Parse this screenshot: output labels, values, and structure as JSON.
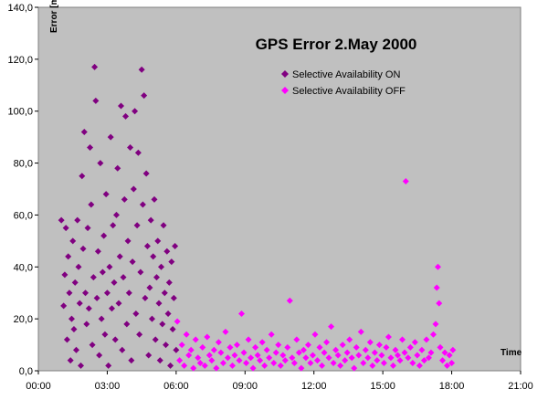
{
  "chart_data": {
    "type": "scatter",
    "title": "GPS Error 2.May 2000",
    "xlabel": "Time",
    "ylabel": "Error [m]",
    "xlim": [
      0,
      21
    ],
    "ylim": [
      0,
      140
    ],
    "x_ticks": [
      "00:00",
      "03:00",
      "06:00",
      "09:00",
      "12:00",
      "15:00",
      "18:00",
      "21:00"
    ],
    "y_ticks": [
      "0,0",
      "20,0",
      "40,0",
      "60,0",
      "80,0",
      "100,0",
      "120,0",
      "140,0"
    ],
    "grid": false,
    "legend_position": "top-right",
    "background": "#c0c0c0",
    "series": [
      {
        "name": "Selective Availability ON",
        "color": "#800080",
        "marker": "diamond",
        "points": [
          [
            1.0,
            58
          ],
          [
            1.1,
            25
          ],
          [
            1.15,
            37
          ],
          [
            1.2,
            55
          ],
          [
            1.25,
            12
          ],
          [
            1.3,
            44
          ],
          [
            1.35,
            30
          ],
          [
            1.4,
            4
          ],
          [
            1.45,
            20
          ],
          [
            1.5,
            50
          ],
          [
            1.55,
            16
          ],
          [
            1.6,
            34
          ],
          [
            1.65,
            8
          ],
          [
            1.7,
            58
          ],
          [
            1.75,
            40
          ],
          [
            1.8,
            26
          ],
          [
            1.85,
            2
          ],
          [
            1.9,
            75
          ],
          [
            1.95,
            47
          ],
          [
            2.0,
            92
          ],
          [
            2.05,
            30
          ],
          [
            2.1,
            18
          ],
          [
            2.15,
            55
          ],
          [
            2.2,
            24
          ],
          [
            2.25,
            86
          ],
          [
            2.3,
            64
          ],
          [
            2.35,
            10
          ],
          [
            2.4,
            36
          ],
          [
            2.45,
            117
          ],
          [
            2.5,
            104
          ],
          [
            2.55,
            28
          ],
          [
            2.6,
            46
          ],
          [
            2.65,
            6
          ],
          [
            2.7,
            80
          ],
          [
            2.75,
            20
          ],
          [
            2.8,
            38
          ],
          [
            2.85,
            52
          ],
          [
            2.9,
            14
          ],
          [
            2.95,
            68
          ],
          [
            3.0,
            30
          ],
          [
            3.05,
            2
          ],
          [
            3.1,
            40
          ],
          [
            3.15,
            90
          ],
          [
            3.2,
            24
          ],
          [
            3.25,
            56
          ],
          [
            3.3,
            34
          ],
          [
            3.35,
            12
          ],
          [
            3.4,
            60
          ],
          [
            3.45,
            78
          ],
          [
            3.5,
            26
          ],
          [
            3.55,
            44
          ],
          [
            3.6,
            102
          ],
          [
            3.65,
            8
          ],
          [
            3.7,
            36
          ],
          [
            3.75,
            66
          ],
          [
            3.8,
            98
          ],
          [
            3.85,
            18
          ],
          [
            3.9,
            50
          ],
          [
            3.95,
            30
          ],
          [
            4.0,
            86
          ],
          [
            4.05,
            4
          ],
          [
            4.1,
            42
          ],
          [
            4.15,
            70
          ],
          [
            4.2,
            100
          ],
          [
            4.25,
            22
          ],
          [
            4.3,
            56
          ],
          [
            4.35,
            84
          ],
          [
            4.4,
            14
          ],
          [
            4.45,
            38
          ],
          [
            4.5,
            116
          ],
          [
            4.55,
            64
          ],
          [
            4.6,
            106
          ],
          [
            4.65,
            28
          ],
          [
            4.7,
            76
          ],
          [
            4.75,
            48
          ],
          [
            4.8,
            6
          ],
          [
            4.85,
            32
          ],
          [
            4.9,
            58
          ],
          [
            4.95,
            20
          ],
          [
            5.0,
            44
          ],
          [
            5.05,
            66
          ],
          [
            5.1,
            12
          ],
          [
            5.15,
            36
          ],
          [
            5.2,
            50
          ],
          [
            5.25,
            26
          ],
          [
            5.3,
            4
          ],
          [
            5.35,
            40
          ],
          [
            5.4,
            18
          ],
          [
            5.45,
            56
          ],
          [
            5.5,
            30
          ],
          [
            5.55,
            10
          ],
          [
            5.6,
            46
          ],
          [
            5.65,
            22
          ],
          [
            5.7,
            34
          ],
          [
            5.75,
            2
          ],
          [
            5.8,
            42
          ],
          [
            5.85,
            16
          ],
          [
            5.9,
            28
          ],
          [
            5.95,
            48
          ],
          [
            6.0,
            8
          ]
        ]
      },
      {
        "name": "Selective Availability OFF",
        "color": "#ff00ff",
        "marker": "diamond",
        "points": [
          [
            6.05,
            19
          ],
          [
            6.15,
            4
          ],
          [
            6.25,
            10
          ],
          [
            6.35,
            2
          ],
          [
            6.45,
            14
          ],
          [
            6.55,
            6
          ],
          [
            6.65,
            8
          ],
          [
            6.75,
            1
          ],
          [
            6.85,
            12
          ],
          [
            6.95,
            5
          ],
          [
            7.05,
            3
          ],
          [
            7.15,
            9
          ],
          [
            7.25,
            2
          ],
          [
            7.35,
            13
          ],
          [
            7.45,
            6
          ],
          [
            7.55,
            4
          ],
          [
            7.65,
            8
          ],
          [
            7.75,
            1
          ],
          [
            7.85,
            11
          ],
          [
            7.95,
            7
          ],
          [
            8.05,
            3
          ],
          [
            8.15,
            15
          ],
          [
            8.25,
            5
          ],
          [
            8.35,
            9
          ],
          [
            8.45,
            2
          ],
          [
            8.55,
            6
          ],
          [
            8.65,
            10
          ],
          [
            8.75,
            4
          ],
          [
            8.85,
            22
          ],
          [
            8.95,
            7
          ],
          [
            9.05,
            3
          ],
          [
            9.15,
            12
          ],
          [
            9.25,
            5
          ],
          [
            9.35,
            1
          ],
          [
            9.45,
            9
          ],
          [
            9.55,
            6
          ],
          [
            9.65,
            4
          ],
          [
            9.75,
            11
          ],
          [
            9.85,
            2
          ],
          [
            9.95,
            8
          ],
          [
            10.05,
            5
          ],
          [
            10.15,
            14
          ],
          [
            10.25,
            3
          ],
          [
            10.35,
            7
          ],
          [
            10.45,
            10
          ],
          [
            10.55,
            2
          ],
          [
            10.65,
            6
          ],
          [
            10.75,
            4
          ],
          [
            10.85,
            9
          ],
          [
            10.95,
            27
          ],
          [
            11.05,
            5
          ],
          [
            11.15,
            3
          ],
          [
            11.25,
            12
          ],
          [
            11.35,
            7
          ],
          [
            11.45,
            1
          ],
          [
            11.55,
            8
          ],
          [
            11.65,
            5
          ],
          [
            11.75,
            10
          ],
          [
            11.85,
            3
          ],
          [
            11.95,
            6
          ],
          [
            12.05,
            14
          ],
          [
            12.15,
            4
          ],
          [
            12.25,
            9
          ],
          [
            12.35,
            2
          ],
          [
            12.45,
            7
          ],
          [
            12.55,
            11
          ],
          [
            12.65,
            5
          ],
          [
            12.75,
            17
          ],
          [
            12.85,
            3
          ],
          [
            12.95,
            8
          ],
          [
            13.05,
            6
          ],
          [
            13.15,
            2
          ],
          [
            13.25,
            10
          ],
          [
            13.35,
            4
          ],
          [
            13.45,
            7
          ],
          [
            13.55,
            12
          ],
          [
            13.65,
            5
          ],
          [
            13.75,
            1
          ],
          [
            13.85,
            9
          ],
          [
            13.95,
            6
          ],
          [
            14.05,
            15
          ],
          [
            14.15,
            3
          ],
          [
            14.25,
            8
          ],
          [
            14.35,
            5
          ],
          [
            14.45,
            11
          ],
          [
            14.55,
            2
          ],
          [
            14.65,
            7
          ],
          [
            14.75,
            4
          ],
          [
            14.85,
            10
          ],
          [
            14.95,
            6
          ],
          [
            15.05,
            3
          ],
          [
            15.15,
            9
          ],
          [
            15.25,
            13
          ],
          [
            15.35,
            5
          ],
          [
            15.45,
            2
          ],
          [
            15.55,
            8
          ],
          [
            15.65,
            6
          ],
          [
            15.75,
            4
          ],
          [
            15.85,
            12
          ],
          [
            15.95,
            7
          ],
          [
            16.0,
            73
          ],
          [
            16.1,
            5
          ],
          [
            16.2,
            9
          ],
          [
            16.3,
            3
          ],
          [
            16.4,
            11
          ],
          [
            16.5,
            6
          ],
          [
            16.6,
            2
          ],
          [
            16.7,
            8
          ],
          [
            16.8,
            4
          ],
          [
            16.9,
            12
          ],
          [
            17.0,
            5
          ],
          [
            17.1,
            7
          ],
          [
            17.2,
            14
          ],
          [
            17.3,
            18
          ],
          [
            17.35,
            32
          ],
          [
            17.4,
            40
          ],
          [
            17.45,
            26
          ],
          [
            17.5,
            9
          ],
          [
            17.6,
            4
          ],
          [
            17.7,
            7
          ],
          [
            17.8,
            2
          ],
          [
            17.9,
            6
          ],
          [
            18.0,
            3
          ],
          [
            18.05,
            8
          ]
        ]
      }
    ]
  }
}
